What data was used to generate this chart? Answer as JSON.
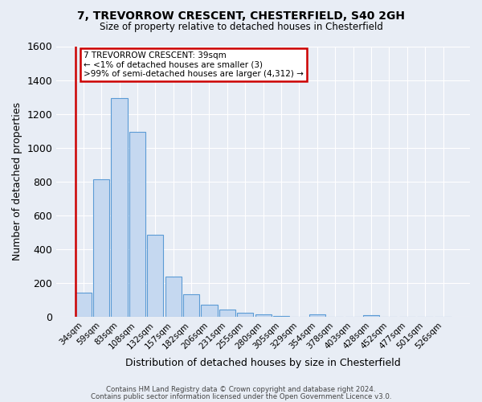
{
  "title": "7, TREVORROW CRESCENT, CHESTERFIELD, S40 2GH",
  "subtitle": "Size of property relative to detached houses in Chesterfield",
  "xlabel": "Distribution of detached houses by size in Chesterfield",
  "ylabel": "Number of detached properties",
  "footer_line1": "Contains HM Land Registry data © Crown copyright and database right 2024.",
  "footer_line2": "Contains public sector information licensed under the Open Government Licence v3.0.",
  "bin_labels": [
    "34sqm",
    "59sqm",
    "83sqm",
    "108sqm",
    "132sqm",
    "157sqm",
    "182sqm",
    "206sqm",
    "231sqm",
    "255sqm",
    "280sqm",
    "305sqm",
    "329sqm",
    "354sqm",
    "378sqm",
    "403sqm",
    "428sqm",
    "452sqm",
    "477sqm",
    "501sqm",
    "526sqm"
  ],
  "bar_values": [
    145,
    815,
    1295,
    1095,
    485,
    240,
    133,
    73,
    45,
    25,
    17,
    8,
    0,
    15,
    0,
    0,
    12,
    0,
    0,
    0,
    0
  ],
  "bar_color": "#c5d8f0",
  "bar_edge_color": "#5b9bd5",
  "annotation_line1": "7 TREVORROW CRESCENT: 39sqm",
  "annotation_line2": "← <1% of detached houses are smaller (3)",
  "annotation_line3": ">99% of semi-detached houses are larger (4,312) →",
  "annotation_box_color": "#ffffff",
  "annotation_box_edge_color": "#cc0000",
  "highlight_line_color": "#cc0000",
  "ylim": [
    0,
    1600
  ],
  "yticks": [
    0,
    200,
    400,
    600,
    800,
    1000,
    1200,
    1400,
    1600
  ],
  "bg_color": "#e8edf5",
  "plot_bg_color": "#e8edf5",
  "grid_color": "#ffffff"
}
